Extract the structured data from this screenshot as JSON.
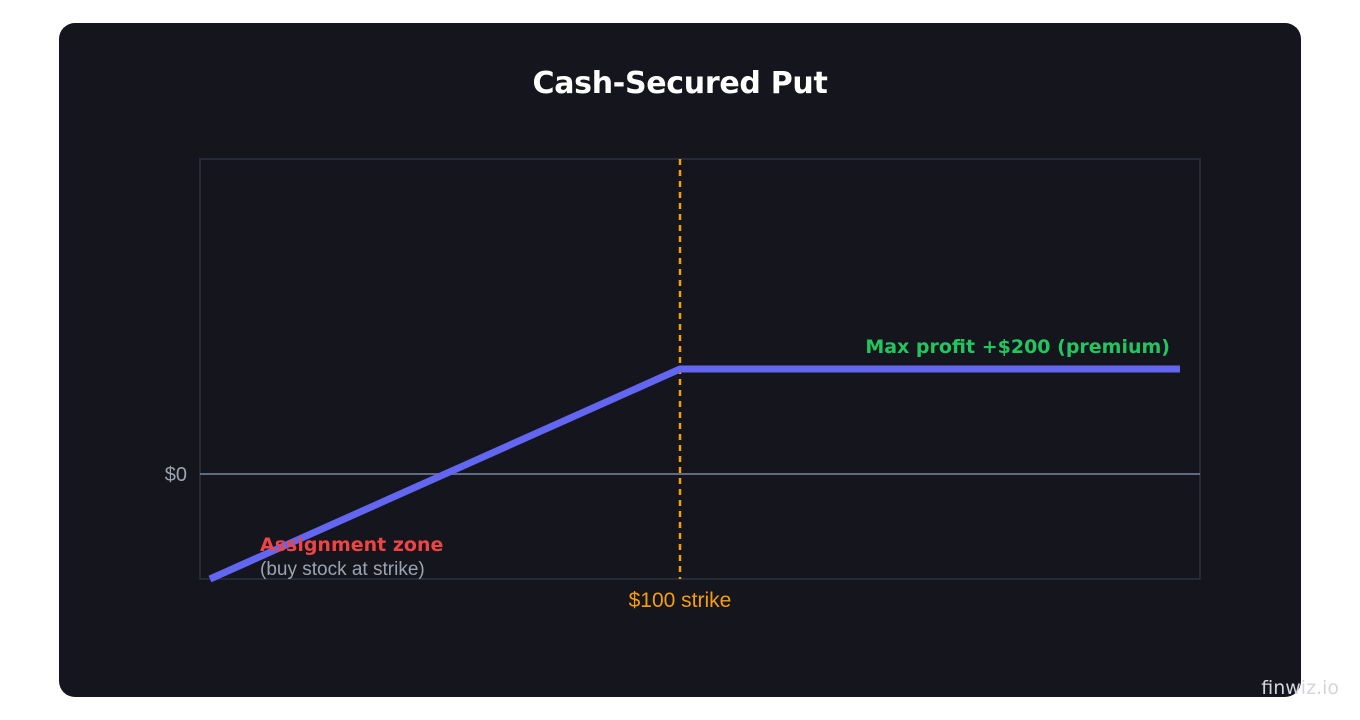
{
  "chart_data": {
    "type": "line",
    "title": "Cash-Secured Put",
    "xlabel": "",
    "ylabel": "",
    "y_tick_labels": [
      "$0"
    ],
    "series": [
      {
        "x": [
          53,
          100,
          150
        ],
        "y": [
          -200,
          200,
          200
        ]
      }
    ],
    "xlim": [
      52,
      152
    ],
    "ylim": [
      -200,
      600
    ],
    "zero_line": 0,
    "strike": {
      "x": 100,
      "label": "$100 strike"
    },
    "annotations": {
      "max_profit": "Max profit +$200 (premium)",
      "assignment_title": "Assignment zone",
      "assignment_sub": "(buy stock at strike)"
    },
    "colors": {
      "payoff_line": "#6366f1",
      "strike_line": "#f59e0b",
      "zero_line": "#5f6b82",
      "profit_text": "#22c55e",
      "assignment_text": "#ef4444",
      "muted_text": "#9ca3af",
      "frame": "#262a36",
      "background": "#15151e"
    },
    "grid": false
  },
  "watermark": "finwiz.io"
}
